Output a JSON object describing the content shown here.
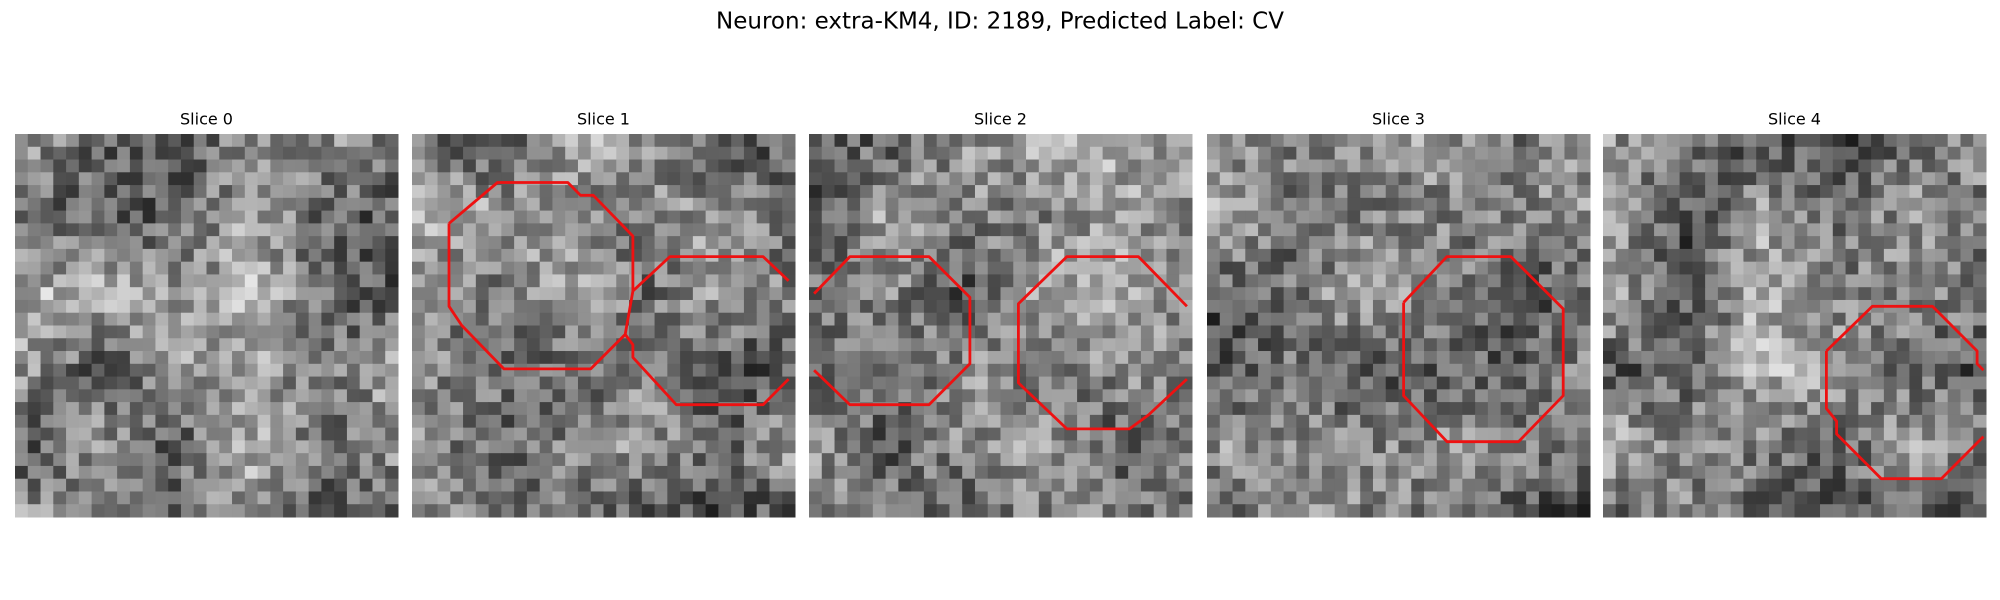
{
  "title": "Neuron: extra-KM4, ID: 2189, Predicted Label: CV",
  "panels": [
    {
      "title": "Slice 0"
    },
    {
      "title": "Slice 1"
    },
    {
      "title": "Slice 2"
    },
    {
      "title": "Slice 3"
    },
    {
      "title": "Slice 4"
    }
  ]
}
